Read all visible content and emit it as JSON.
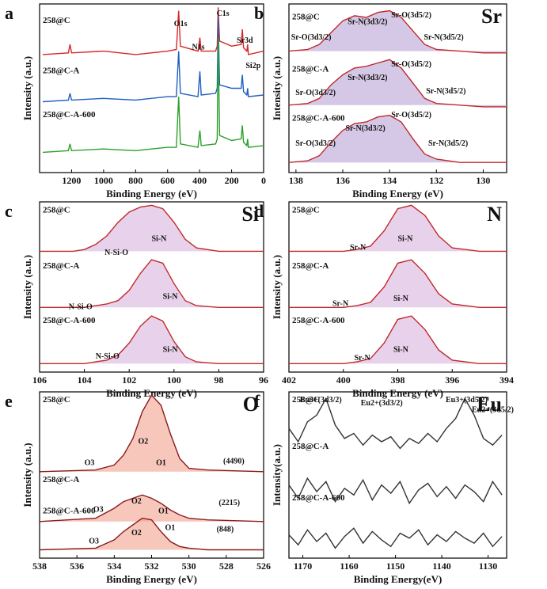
{
  "chart_data": [
    {
      "type": "line",
      "panel": "a",
      "xlabel": "Binding Energy (eV)",
      "ylabel": "Intensity (a.u.)",
      "xlim": [
        1400,
        0
      ],
      "xticks": [
        1200,
        1000,
        800,
        600,
        400,
        200,
        0
      ],
      "ylim": [
        0,
        100
      ],
      "x": [
        1380,
        1220,
        1210,
        1200,
        1000,
        800,
        600,
        545,
        531,
        520,
        410,
        398,
        390,
        300,
        290,
        284,
        275,
        200,
        140,
        133,
        125,
        105,
        100,
        95,
        0
      ],
      "series": [
        {
          "name": "258@C",
          "color": "#d62728",
          "values": [
            70,
            71,
            76,
            71,
            72,
            70,
            72,
            73,
            96,
            75,
            72,
            80,
            72,
            72,
            75,
            98,
            78,
            75,
            76,
            85,
            74,
            72,
            76,
            70,
            72
          ]
        },
        {
          "name": "258@C-A",
          "color": "#1f5fbf",
          "values": [
            42,
            43,
            47,
            43,
            44,
            43,
            45,
            45,
            72,
            47,
            45,
            60,
            46,
            47,
            50,
            92,
            52,
            50,
            50,
            58,
            48,
            46,
            50,
            45,
            46
          ]
        },
        {
          "name": "258@C-A-600",
          "color": "#2ca02c",
          "values": [
            12,
            13,
            17,
            13,
            14,
            13,
            15,
            15,
            45,
            17,
            15,
            25,
            16,
            17,
            20,
            80,
            22,
            19,
            20,
            28,
            18,
            16,
            20,
            15,
            16
          ]
        }
      ],
      "annotations": [
        "O1s",
        "N1s",
        "C1s",
        "Sr3d",
        "Si2p"
      ]
    },
    {
      "type": "line",
      "panel": "b",
      "title": "Sr",
      "xlabel": "Binding Energy (eV)",
      "ylabel": "Intensity (a.u.)",
      "xlim": [
        138.3,
        129
      ],
      "xticks": [
        138,
        136,
        134,
        132,
        130
      ],
      "ylim": [
        0,
        100
      ],
      "fill": "#b9a3d6",
      "x": [
        138.3,
        137.5,
        137,
        136.5,
        136,
        135.5,
        135,
        134.5,
        134,
        133.5,
        133,
        132.5,
        132,
        131,
        130,
        129
      ],
      "series": [
        {
          "name": "258@C",
          "color": "#c0292b",
          "values": [
            72,
            73,
            76,
            83,
            90,
            93,
            92,
            95,
            96,
            92,
            84,
            76,
            73,
            72,
            71,
            71
          ]
        },
        {
          "name": "258@C-A",
          "color": "#c0292b",
          "values": [
            40,
            41,
            44,
            52,
            58,
            62,
            63,
            65,
            67,
            62,
            53,
            44,
            41,
            40,
            39,
            39
          ]
        },
        {
          "name": "258@C-A-600",
          "color": "#c0292b",
          "values": [
            6,
            7,
            10,
            18,
            25,
            29,
            30,
            33,
            34,
            30,
            20,
            11,
            8,
            6,
            6,
            6
          ]
        }
      ],
      "annotations": [
        "Sr-O(3d3/2)",
        "Sr-N(3d3/2)",
        "Sr-O(3d5/2)",
        "Sr-N(3d5/2)",
        "Sr-O(3d3/2)",
        "Sr-N(3d3/2)",
        "Sr-O(3d5/2)",
        "Sr-N(3d5/2)",
        "Sr-O(3d3/2)",
        "Sr-N(3d3/2)",
        "Sr-O(3d5/2)",
        "Sr-N(3d5/2)"
      ]
    },
    {
      "type": "line",
      "panel": "c",
      "title": "Si",
      "xlabel": "Binding Energy (eV)",
      "ylabel": "Intensity (a.u.)",
      "xlim": [
        106,
        96
      ],
      "xticks": [
        106,
        104,
        102,
        100,
        98,
        96
      ],
      "ylim": [
        0,
        100
      ],
      "fill": "#d9b3dc",
      "x": [
        106,
        104.5,
        104,
        103.5,
        103,
        102.5,
        102,
        101.5,
        101,
        100.5,
        100,
        99.5,
        99,
        98,
        96
      ],
      "series": [
        {
          "name": "258@C",
          "color": "#c0292b",
          "values": [
            71,
            71,
            72,
            75,
            80,
            88,
            94,
            97,
            98,
            96,
            88,
            78,
            73,
            71,
            71
          ]
        },
        {
          "name": "258@C-A",
          "color": "#c0292b",
          "values": [
            38,
            38,
            38,
            39,
            40,
            42,
            48,
            58,
            66,
            64,
            52,
            42,
            39,
            38,
            38
          ]
        },
        {
          "name": "258@C-A-600",
          "color": "#c0292b",
          "values": [
            5,
            5,
            5,
            6,
            7,
            10,
            17,
            27,
            33,
            30,
            18,
            9,
            6,
            5,
            5
          ]
        }
      ],
      "annotations": [
        "N-Si-O",
        "Si-N",
        "N-Si-O",
        "Si-N",
        "N-Si-O",
        "Si-N"
      ]
    },
    {
      "type": "line",
      "panel": "d",
      "title": "N",
      "xlabel": "Binding Energy (eV)",
      "ylabel": "Intensity (a.u.)",
      "xlim": [
        402,
        394
      ],
      "xticks": [
        402,
        400,
        398,
        396,
        394
      ],
      "ylim": [
        0,
        100
      ],
      "fill": "#d9b3dc",
      "x": [
        402,
        400,
        399.5,
        399,
        398.5,
        398,
        397.5,
        397,
        396.5,
        396,
        395,
        394
      ],
      "series": [
        {
          "name": "258@C",
          "color": "#c0292b",
          "values": [
            71,
            71,
            72,
            74,
            83,
            96,
            98,
            92,
            80,
            73,
            71,
            71
          ]
        },
        {
          "name": "258@C-A",
          "color": "#c0292b",
          "values": [
            38,
            38,
            39,
            41,
            50,
            64,
            66,
            58,
            46,
            40,
            38,
            38
          ]
        },
        {
          "name": "258@C-A-600",
          "color": "#c0292b",
          "values": [
            5,
            5,
            6,
            8,
            17,
            31,
            33,
            25,
            13,
            7,
            5,
            5
          ]
        }
      ],
      "annotations": [
        "Sr-N",
        "Si-N",
        "Sr-N",
        "Si-N",
        "Sr-N",
        "Si-N"
      ]
    },
    {
      "type": "line",
      "panel": "e",
      "title": "O",
      "xlabel": "Binding Energy (eV)",
      "ylabel": "Intensity (a.u.)",
      "xlim": [
        538,
        526
      ],
      "xticks": [
        538,
        536,
        534,
        532,
        530,
        528,
        526
      ],
      "ylim": [
        0,
        100
      ],
      "fill": "#f2a18f",
      "x": [
        538,
        535,
        534,
        533.5,
        533,
        532.5,
        532,
        531.5,
        531,
        530.5,
        530,
        529,
        526
      ],
      "series": [
        {
          "name": "258@C",
          "color": "#8b1a1a",
          "values": [
            52,
            53,
            56,
            62,
            72,
            88,
            98,
            92,
            75,
            60,
            54,
            53,
            52
          ]
        },
        {
          "name": "258@C-A",
          "color": "#8b1a1a",
          "values": [
            22,
            24,
            30,
            34,
            36,
            38,
            36,
            33,
            29,
            26,
            24,
            23,
            22
          ]
        },
        {
          "name": "258@C-A-600",
          "color": "#8b1a1a",
          "values": [
            5,
            6,
            11,
            16,
            20,
            24,
            23,
            16,
            10,
            7,
            6,
            5,
            5
          ]
        }
      ],
      "annotations": [
        "O2",
        "O3",
        "O1",
        "(4490)",
        "O2",
        "O3",
        "O1",
        "(2215)",
        "O3",
        "O2",
        "O1",
        "(848)"
      ]
    },
    {
      "type": "line",
      "panel": "f",
      "title": "Eu",
      "xlabel": "Binding Energy(eV)",
      "ylabel": "Intensity(a.u.)",
      "xlim": [
        1173,
        1126
      ],
      "xticks": [
        1170,
        1160,
        1150,
        1140,
        1130
      ],
      "ylim": [
        0,
        100
      ],
      "x": [
        1173,
        1171,
        1169,
        1167,
        1165,
        1163,
        1161,
        1159,
        1157,
        1155,
        1153,
        1151,
        1149,
        1147,
        1145,
        1143,
        1141,
        1139,
        1137,
        1135,
        1133,
        1131,
        1129,
        1127
      ],
      "series": [
        {
          "name": "258@C",
          "color": "#333333",
          "values": [
            78,
            70,
            82,
            86,
            96,
            80,
            72,
            75,
            68,
            74,
            70,
            73,
            66,
            72,
            69,
            75,
            70,
            78,
            84,
            96,
            86,
            72,
            68,
            74
          ]
        },
        {
          "name": "258@C-A",
          "color": "#333333",
          "values": [
            44,
            36,
            48,
            40,
            46,
            34,
            42,
            38,
            47,
            35,
            44,
            39,
            46,
            33,
            41,
            45,
            37,
            43,
            36,
            44,
            40,
            34,
            46,
            38
          ]
        },
        {
          "name": "258@C-A-600",
          "color": "#333333",
          "values": [
            14,
            8,
            17,
            10,
            15,
            6,
            13,
            18,
            9,
            16,
            11,
            7,
            15,
            12,
            17,
            8,
            14,
            10,
            16,
            12,
            9,
            15,
            7,
            13
          ]
        }
      ],
      "annotations": [
        "Eu3+(3d3/2)",
        "Eu2+(3d3/2)",
        "Eu3+(3d5/2)",
        "Eu2+(3d5/2)"
      ]
    }
  ]
}
